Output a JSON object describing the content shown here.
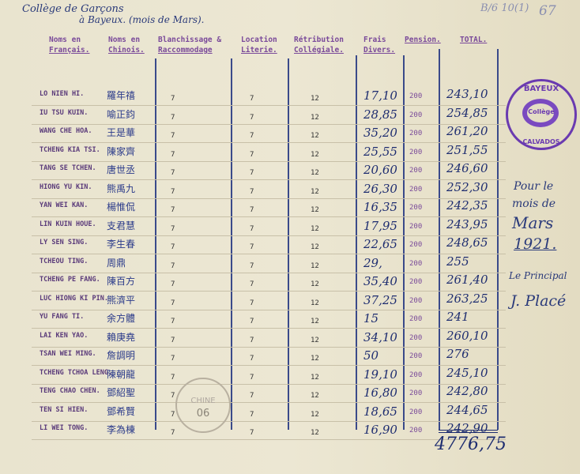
{
  "header": {
    "line1": "Collège de Garçons",
    "line2": "à Bayeux. (mois de Mars).",
    "archive_ref": "B/6 10(1)",
    "archive_mark": "67"
  },
  "columns": [
    {
      "l1": "Noms en",
      "l2": "Français."
    },
    {
      "l1": "Noms en",
      "l2": "Chinois."
    },
    {
      "l1": "Blanchissage &",
      "l2": "Raccommodage"
    },
    {
      "l1": "Location",
      "l2": "Literie."
    },
    {
      "l1": "Rétribution",
      "l2": "Collégiale."
    },
    {
      "l1": "Frais",
      "l2": "Divers."
    },
    {
      "l1": "Pension.",
      "l2": ""
    },
    {
      "l1": "TOTAL.",
      "l2": ""
    }
  ],
  "rows": [
    {
      "fr": "LO NIEN HI.",
      "cn": "羅年禧",
      "blanch": "7",
      "literie": "7",
      "retrib": "12",
      "frais": "17,10",
      "pension": "200",
      "total": "243,10"
    },
    {
      "fr": "IU TSU KUIN.",
      "cn": "喻正鈞",
      "blanch": "7",
      "literie": "7",
      "retrib": "12",
      "frais": "28,85",
      "pension": "200",
      "total": "254,85"
    },
    {
      "fr": "WANG CHE HOA.",
      "cn": "王是華",
      "blanch": "7",
      "literie": "7",
      "retrib": "12",
      "frais": "35,20",
      "pension": "200",
      "total": "261,20"
    },
    {
      "fr": "TCHENG KIA TSI.",
      "cn": "陳家齊",
      "blanch": "7",
      "literie": "7",
      "retrib": "12",
      "frais": "25,55",
      "pension": "200",
      "total": "251,55"
    },
    {
      "fr": "TANG SE TCHEN.",
      "cn": "唐世丞",
      "blanch": "7",
      "literie": "7",
      "retrib": "12",
      "frais": "20,60",
      "pension": "200",
      "total": "246,60"
    },
    {
      "fr": "HIONG YU KIN.",
      "cn": "熊禹九",
      "blanch": "7",
      "literie": "7",
      "retrib": "12",
      "frais": "26,30",
      "pension": "200",
      "total": "252,30"
    },
    {
      "fr": "YAN WEI KAN.",
      "cn": "楊惟侃",
      "blanch": "7",
      "literie": "7",
      "retrib": "12",
      "frais": "16,35",
      "pension": "200",
      "total": "242,35"
    },
    {
      "fr": "LIN KUIN HOUE.",
      "cn": "支君慧",
      "blanch": "7",
      "literie": "7",
      "retrib": "12",
      "frais": "17,95",
      "pension": "200",
      "total": "243,95"
    },
    {
      "fr": "LY SEN SING.",
      "cn": "李生春",
      "blanch": "7",
      "literie": "7",
      "retrib": "12",
      "frais": "22,65",
      "pension": "200",
      "total": "248,65"
    },
    {
      "fr": "TCHEOU TING.",
      "cn": "周鼎",
      "blanch": "7",
      "literie": "7",
      "retrib": "12",
      "frais": "29,",
      "pension": "200",
      "total": "255"
    },
    {
      "fr": "TCHENG PE FANG.",
      "cn": "陳百方",
      "blanch": "7",
      "literie": "7",
      "retrib": "12",
      "frais": "35,40",
      "pension": "200",
      "total": "261,40"
    },
    {
      "fr": "LUC HIONG KI PIN.",
      "cn": "熊濟平",
      "blanch": "7",
      "literie": "7",
      "retrib": "12",
      "frais": "37,25",
      "pension": "200",
      "total": "263,25"
    },
    {
      "fr": "YU FANG TI.",
      "cn": "余方體",
      "blanch": "7",
      "literie": "7",
      "retrib": "12",
      "frais": "15",
      "pension": "200",
      "total": "241"
    },
    {
      "fr": "LAI KEN YAO.",
      "cn": "賴庚堯",
      "blanch": "7",
      "literie": "7",
      "retrib": "12",
      "frais": "34,10",
      "pension": "200",
      "total": "260,10"
    },
    {
      "fr": "TSAN WEI MING.",
      "cn": "詹調明",
      "blanch": "7",
      "literie": "7",
      "retrib": "12",
      "frais": "50",
      "pension": "200",
      "total": "276"
    },
    {
      "fr": "TCHENG TCHOA LENG.",
      "cn": "陳朝龍",
      "blanch": "7",
      "literie": "7",
      "retrib": "12",
      "frais": "19,10",
      "pension": "200",
      "total": "245,10"
    },
    {
      "fr": "TENG CHAO CHEN.",
      "cn": "鄧紹聖",
      "blanch": "7",
      "literie": "7",
      "retrib": "12",
      "frais": "16,80",
      "pension": "200",
      "total": "242,80"
    },
    {
      "fr": "TEN SI HIEN.",
      "cn": "鄧希賢",
      "blanch": "7",
      "literie": "7",
      "retrib": "12",
      "frais": "18,65",
      "pension": "200",
      "total": "244,65"
    },
    {
      "fr": "LI WEI TONG.",
      "cn": "李為棟",
      "blanch": "7",
      "literie": "7",
      "retrib": "12",
      "frais": "16,90",
      "pension": "200",
      "total": "242,90"
    }
  ],
  "grand_total": "4776,75",
  "annotation": {
    "l1": "Pour le",
    "l2": "mois de",
    "l3": "Mars",
    "l4": "1921.",
    "l5": "Le Principal",
    "signature": "J. Placé"
  },
  "stamps": {
    "college_top": "BAYEUX",
    "college_center": "Collège",
    "college_bottom": "CALVADOS",
    "chine_text": "CHINE",
    "chine_number": "06"
  },
  "colors": {
    "ink": "#1e2d70",
    "typed_purple": "#7a4a9a",
    "stamp_violet": "#6a3ab0"
  }
}
